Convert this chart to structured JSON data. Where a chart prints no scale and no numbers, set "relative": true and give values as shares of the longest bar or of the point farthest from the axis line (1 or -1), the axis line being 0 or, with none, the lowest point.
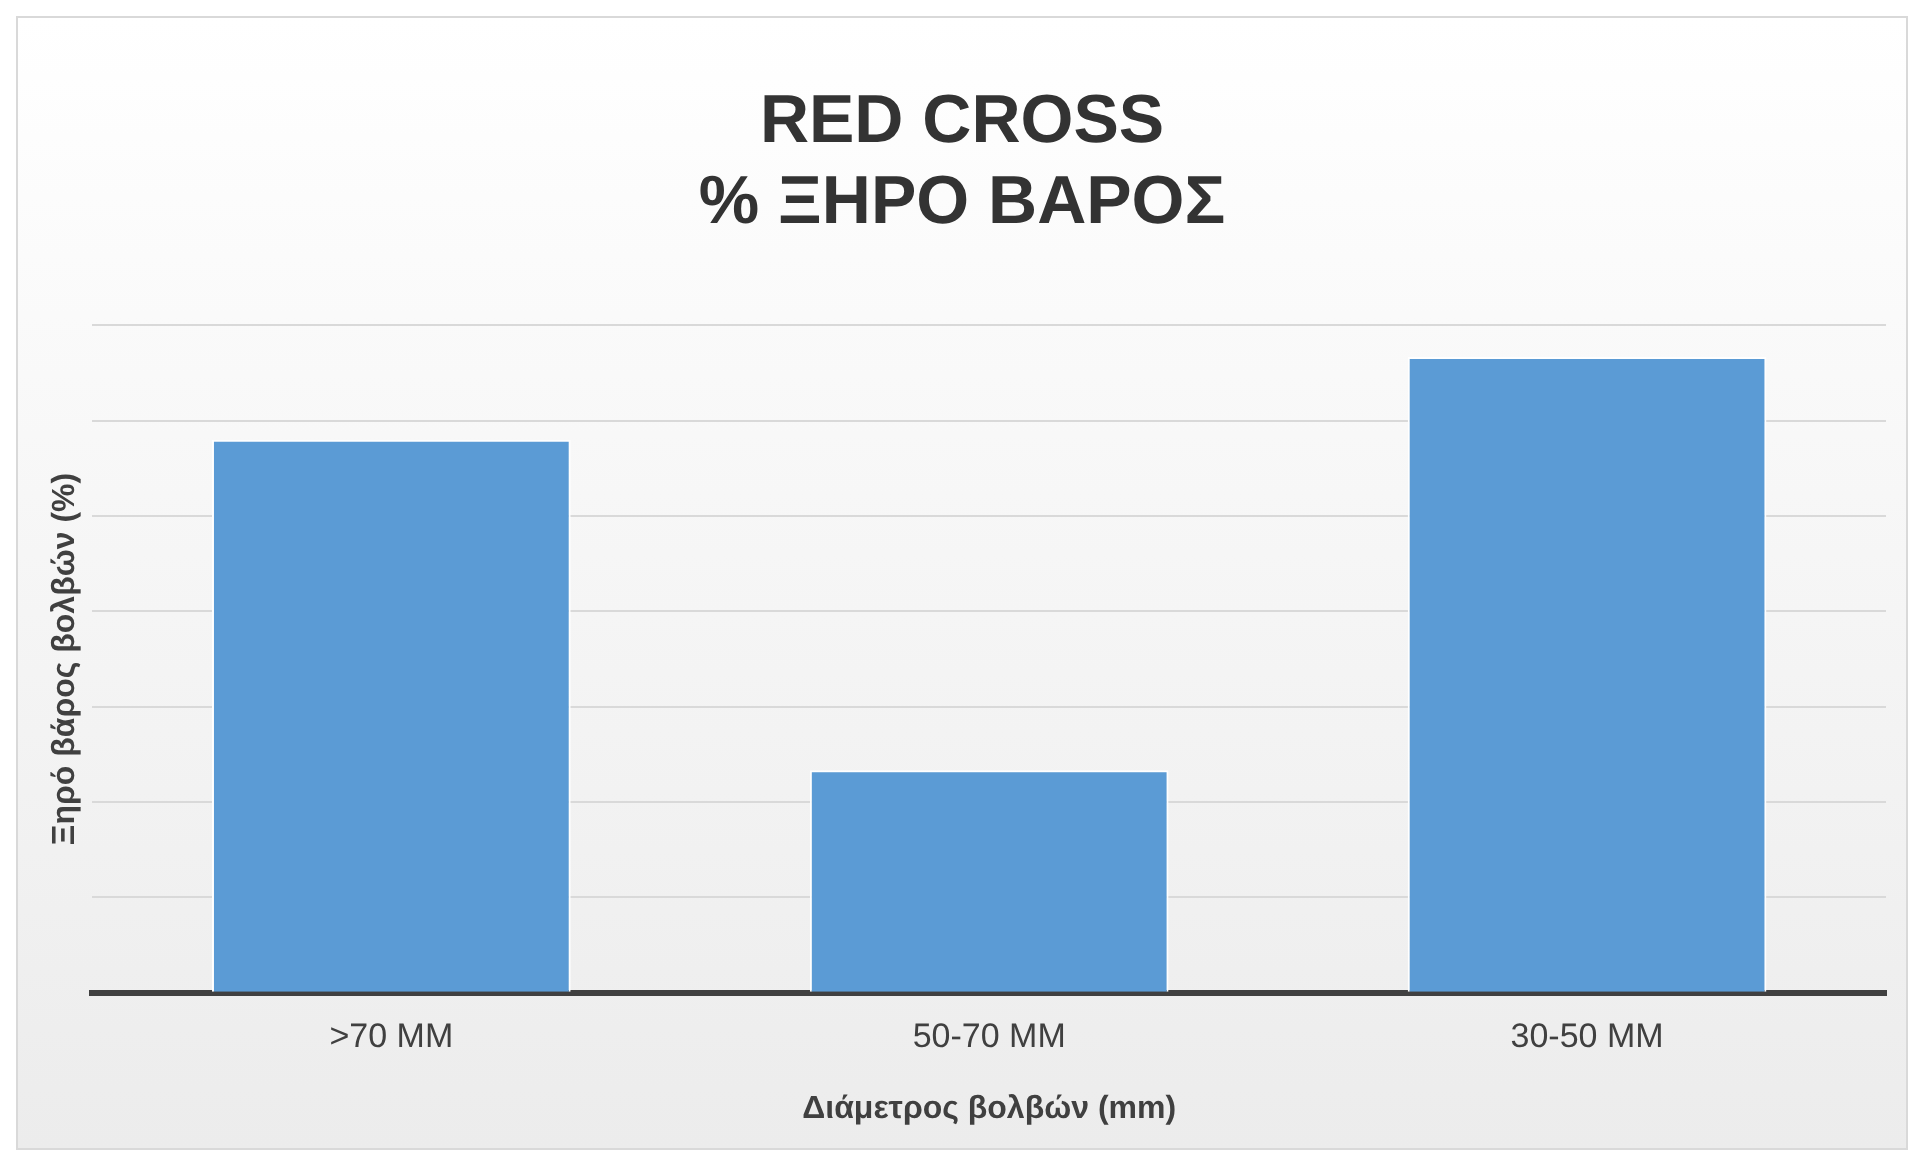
{
  "chart_data": {
    "type": "bar",
    "title": "RED CROSS\n% ΞΗΡΟ ΒΑΡΟΣ",
    "xlabel": "Διάμετρος βολβών (mm)",
    "ylabel": "Ξηρό βάρος βολβών (%)",
    "categories": [
      ">70 MM",
      "50-70 MM",
      "30-50 MM"
    ],
    "values": [
      0.87,
      0.35,
      1
    ],
    "color": "#5b9bd5",
    "relative": true,
    "grid": "y",
    "legend": false
  }
}
